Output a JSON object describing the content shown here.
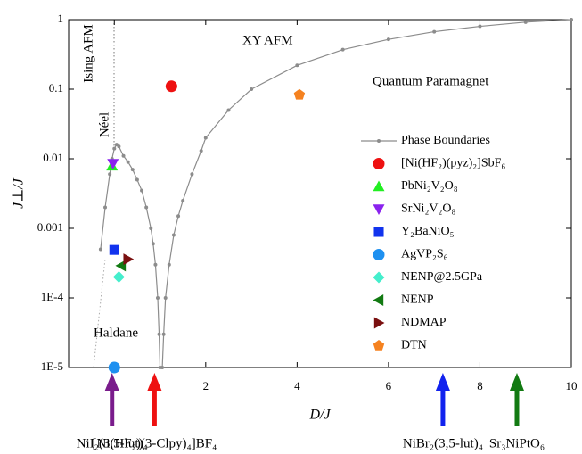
{
  "chart_data": {
    "type": "scatter",
    "xlabel": "D/J",
    "ylabel": "J⊥/J",
    "xlim": [
      -1,
      10
    ],
    "ylim": [
      1e-05,
      1
    ],
    "log_y": true,
    "xticks": [
      0,
      2,
      4,
      6,
      8,
      10
    ],
    "yticks": [
      {
        "value": 1e-05,
        "label": "1E-5"
      },
      {
        "value": 0.0001,
        "label": "1E-4"
      },
      0.001,
      0.01,
      0.1,
      1
    ],
    "annotations": [
      "Ising AFM",
      "Néel",
      "XY AFM",
      "Quantum Paramagnet",
      "Haldane"
    ],
    "series": [
      {
        "name": "Phase Boundaries",
        "color": "#8c8c8c",
        "marker": "line",
        "x": [
          -0.3,
          -0.2,
          -0.1,
          -0.05,
          0,
          0.05,
          0.1,
          0.2,
          0.3,
          0.4,
          0.5,
          0.6,
          0.7,
          0.8,
          0.85,
          0.9,
          0.95,
          0.98,
          1.0,
          null,
          1.05,
          1.08,
          1.12,
          1.2,
          1.3,
          1.4,
          1.5,
          1.7,
          1.9,
          2.0,
          2.5,
          3,
          4,
          5,
          6,
          7,
          8,
          9,
          10
        ],
        "values": [
          0.0005,
          0.002,
          0.006,
          0.01,
          0.014,
          0.016,
          0.015,
          0.011,
          0.009,
          0.007,
          0.005,
          0.0035,
          0.002,
          0.001,
          0.0006,
          0.0003,
          0.0001,
          3e-05,
          1e-05,
          null,
          1e-05,
          3e-05,
          0.0001,
          0.0003,
          0.0008,
          0.0015,
          0.0025,
          0.006,
          0.013,
          0.02,
          0.05,
          0.1,
          0.22,
          0.37,
          0.52,
          0.67,
          0.8,
          0.92,
          1
        ]
      },
      {
        "name": "[Ni(HF₂)(pyz)₂]SbF₆",
        "color": "#ee1111",
        "marker": "circle",
        "x": [
          1.25
        ],
        "values": [
          0.11
        ]
      },
      {
        "name": "PbNi₂V₂O₈",
        "color": "#22ee22",
        "marker": "triangle-up",
        "x": [
          -0.05
        ],
        "values": [
          0.0079
        ]
      },
      {
        "name": "SrNi₂V₂O₈",
        "color": "#8a22ee",
        "marker": "triangle-down",
        "x": [
          -0.03
        ],
        "values": [
          0.0085
        ]
      },
      {
        "name": "Y₂BaNiO₅",
        "color": "#1133ee",
        "marker": "square",
        "x": [
          0
        ],
        "values": [
          0.00049
        ]
      },
      {
        "name": "AgVP₂S₆",
        "color": "#1e90f0",
        "marker": "circle",
        "x": [
          0
        ],
        "values": [
          1e-05
        ]
      },
      {
        "name": "NENP@2.5GPa",
        "color": "#44eecc",
        "marker": "diamond",
        "x": [
          0.1
        ],
        "values": [
          0.0002
        ]
      },
      {
        "name": "NENP",
        "color": "#127a12",
        "marker": "triangle-left",
        "x": [
          0.15
        ],
        "values": [
          0.00029
        ]
      },
      {
        "name": "NDMAP",
        "color": "#7a1010",
        "marker": "triangle-right",
        "x": [
          0.3
        ],
        "values": [
          0.00036
        ]
      },
      {
        "name": "DTN",
        "color": "#f58220",
        "marker": "pentagon",
        "x": [
          4.05
        ],
        "values": [
          0.083
        ]
      }
    ],
    "arrows": [
      {
        "label": "NiI₂(3,5-lut)₄",
        "x": -0.05,
        "color": "#7a1c8c"
      },
      {
        "label": "[Ni(HF₂)(3-Clpy)₄]BF₄",
        "x": 0.88,
        "color": "#ee1111"
      },
      {
        "label": "NiBr₂(3,5-lut)₄",
        "x": 7.19,
        "color": "#1122ee"
      },
      {
        "label": "Sr₃NiPtO₆",
        "x": 8.81,
        "color": "#127a12"
      }
    ]
  }
}
